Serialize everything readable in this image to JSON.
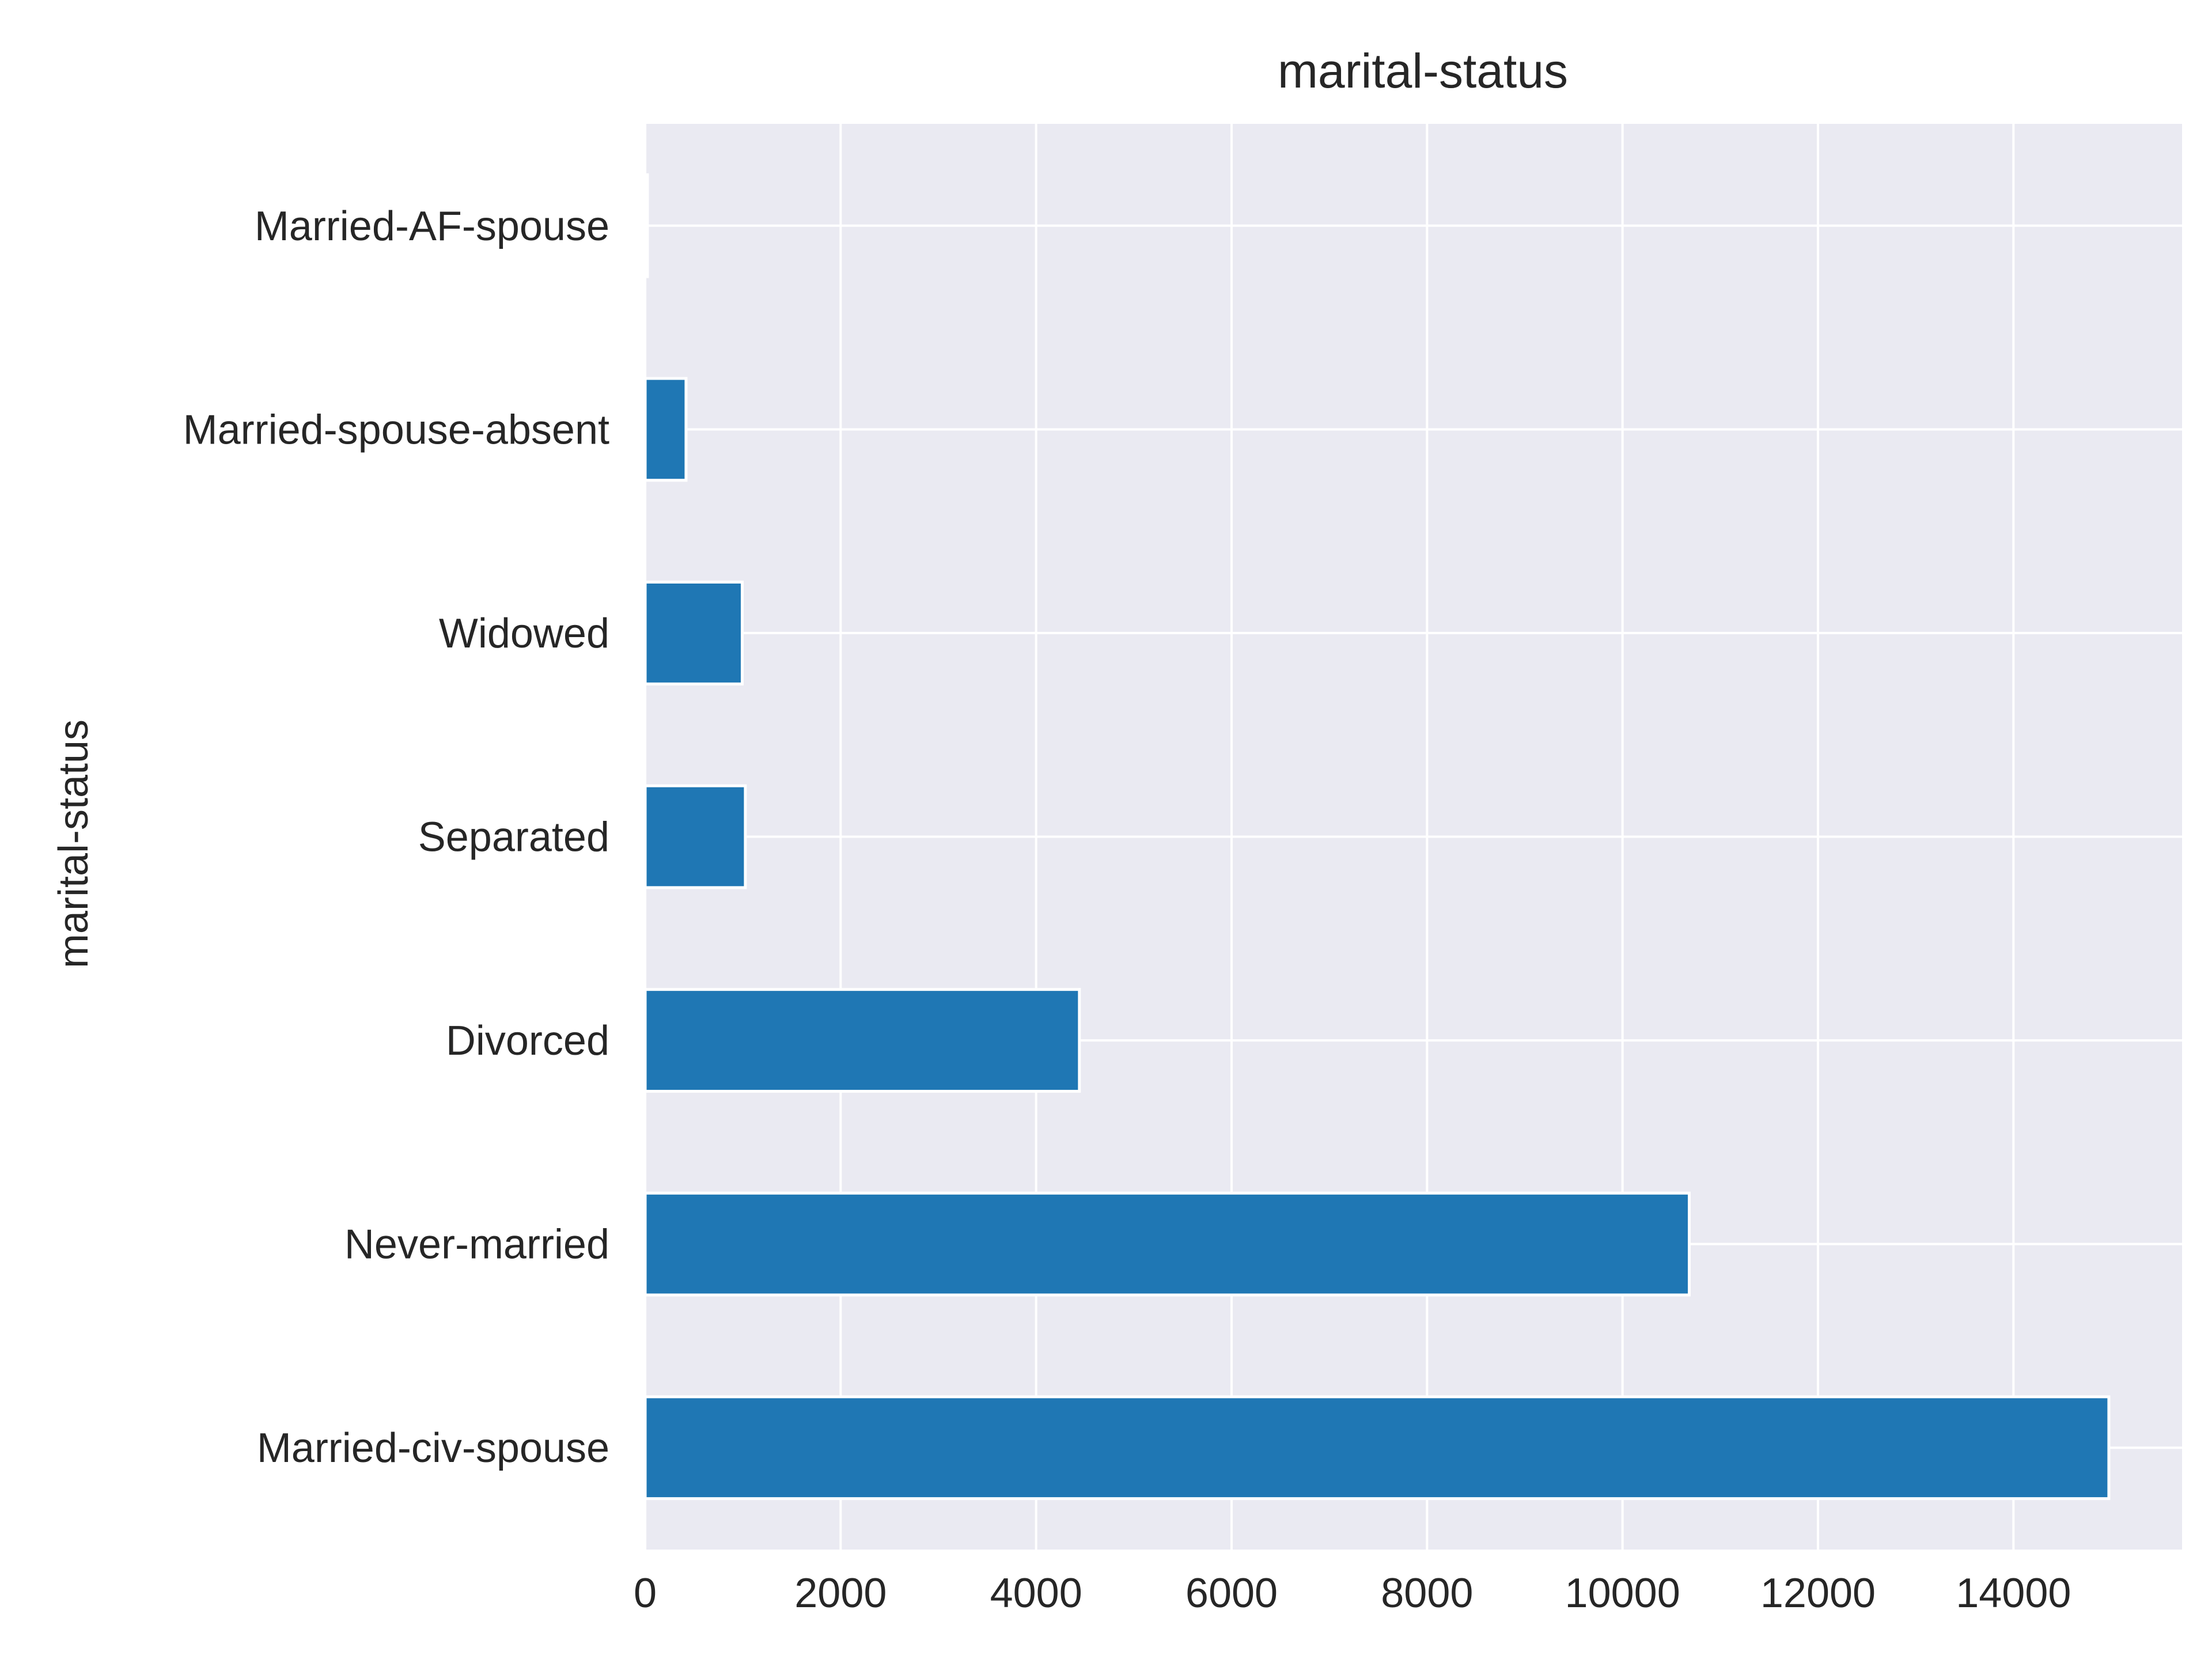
{
  "chart_data": {
    "type": "bar",
    "orientation": "horizontal",
    "title": "marital-status",
    "xlabel": "",
    "ylabel": "marital-status",
    "categories": [
      "Married-civ-spouse",
      "Never-married",
      "Divorced",
      "Separated",
      "Widowed",
      "Married-spouse-absent",
      "Married-AF-spouse"
    ],
    "values": [
      14976,
      10683,
      4443,
      1025,
      993,
      418,
      23
    ],
    "xlim": [
      0,
      15725
    ],
    "xticks": [
      0,
      2000,
      4000,
      6000,
      8000,
      10000,
      12000,
      14000
    ],
    "grid": true,
    "colors": {
      "bar": "#1f77b4",
      "plot_background": "#eaeaf2",
      "grid": "#ffffff",
      "text": "#262626"
    }
  }
}
